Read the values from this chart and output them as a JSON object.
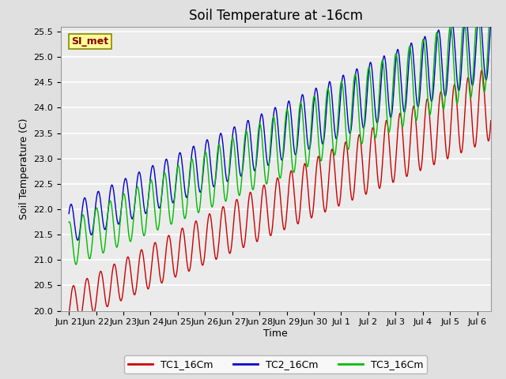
{
  "title": "Soil Temperature at -16cm",
  "xlabel": "Time",
  "ylabel": "Soil Temperature (C)",
  "ylim": [
    20.0,
    25.6
  ],
  "yticks": [
    20.0,
    20.5,
    21.0,
    21.5,
    22.0,
    22.5,
    23.0,
    23.5,
    24.0,
    24.5,
    25.0,
    25.5
  ],
  "background_color": "#e0e0e0",
  "plot_bg_color": "#ebebeb",
  "grid_color": "#ffffff",
  "series": {
    "TC1_16Cm": {
      "color": "#cc0000",
      "label": "TC1_16Cm"
    },
    "TC2_16Cm": {
      "color": "#0000cc",
      "label": "TC2_16Cm"
    },
    "TC3_16Cm": {
      "color": "#00bb00",
      "label": "TC3_16Cm"
    }
  },
  "watermark": "SI_met",
  "watermark_bg": "#ffff99",
  "watermark_border": "#888800",
  "watermark_text_color": "#880000",
  "n_points": 768,
  "days": 15.5,
  "xtick_labels": [
    "Jun 21",
    "Jun 22",
    "Jun 23",
    "Jun 24",
    "Jun 25",
    "Jun 26",
    "Jun 27",
    "Jun 28",
    "Jun 29",
    "Jun 30",
    "Jul 1",
    "Jul 2",
    "Jul 3",
    "Jul 4",
    "Jul 5",
    "Jul 6"
  ],
  "title_fontsize": 12,
  "axis_label_fontsize": 9,
  "tick_fontsize": 8,
  "legend_fontsize": 9
}
